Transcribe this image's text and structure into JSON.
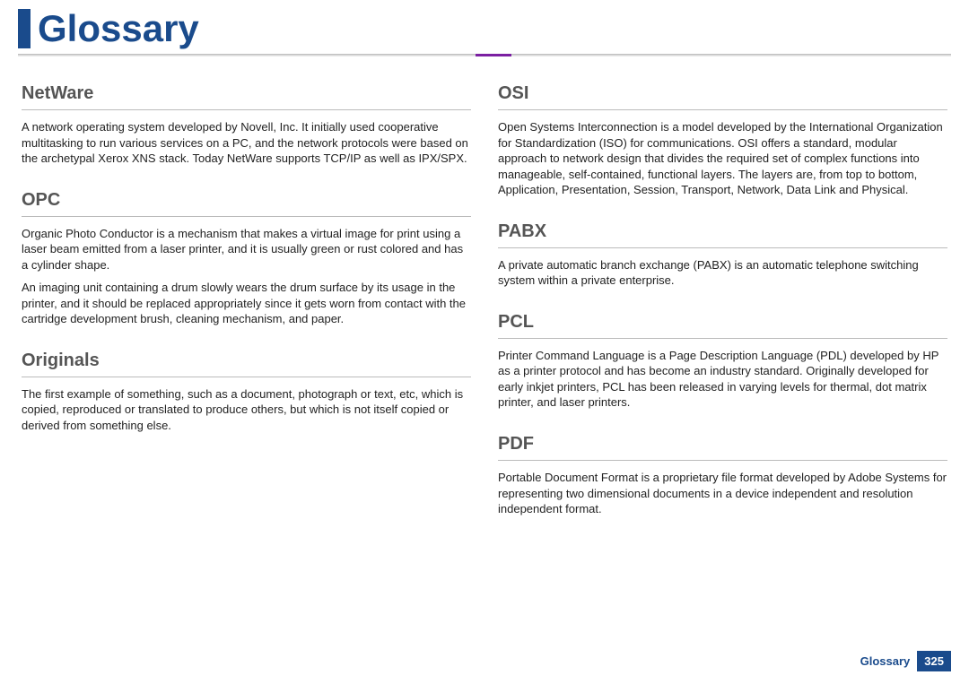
{
  "header": {
    "title": "Glossary"
  },
  "columns": {
    "left": [
      {
        "term": "NetWare",
        "defs": [
          "A network operating system developed by Novell, Inc. It initially used cooperative multitasking to run various services on a PC, and the network protocols were based on the archetypal Xerox XNS stack. Today NetWare supports TCP/IP as well as IPX/SPX."
        ]
      },
      {
        "term": "OPC",
        "defs": [
          "Organic Photo Conductor is a mechanism that makes a virtual image for print using a laser beam emitted from a laser printer, and it is usually green or rust colored and has a cylinder shape.",
          "An imaging unit containing a drum slowly wears the drum surface by its usage in the printer, and it should be replaced appropriately since it gets worn from contact with the cartridge development brush, cleaning mechanism, and paper."
        ]
      },
      {
        "term": "Originals",
        "defs": [
          "The first example of something, such as a document, photograph or text, etc, which is copied, reproduced or translated to produce others, but which is not itself copied or derived from something else."
        ]
      }
    ],
    "right": [
      {
        "term": "OSI",
        "defs": [
          "Open Systems Interconnection is a model developed by the International Organization for Standardization (ISO) for communications. OSI offers a standard, modular approach to network design that divides the required set of complex functions into manageable, self-contained, functional layers. The layers are, from top to bottom, Application, Presentation, Session, Transport, Network, Data Link and Physical."
        ]
      },
      {
        "term": "PABX",
        "defs": [
          "A private automatic branch exchange (PABX) is an automatic telephone switching system within a private enterprise."
        ]
      },
      {
        "term": "PCL",
        "defs": [
          "Printer Command Language is a Page Description Language (PDL) developed by HP as a printer protocol and has become an industry standard. Originally developed for early inkjet printers, PCL has been released in varying levels for thermal, dot matrix printer, and laser printers."
        ]
      },
      {
        "term": "PDF",
        "defs": [
          "Portable Document Format is a proprietary file format developed by Adobe Systems for representing two dimensional documents in a device independent and resolution independent format."
        ]
      }
    ]
  },
  "footer": {
    "label": "Glossary",
    "page": "325"
  }
}
